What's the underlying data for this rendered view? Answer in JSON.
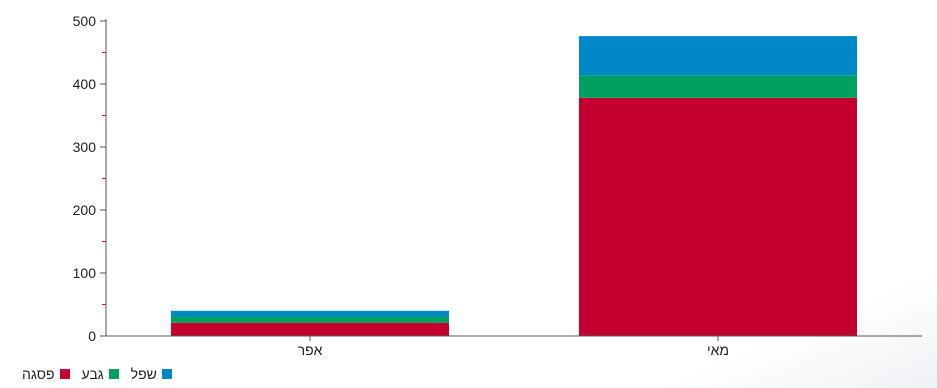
{
  "chart_data": {
    "type": "bar",
    "stacked": true,
    "categories": [
      "אפר",
      "מאי"
    ],
    "series": [
      {
        "name": "פסגה",
        "color": "#c4002f",
        "values": [
          21,
          378
        ]
      },
      {
        "name": "גבע",
        "color": "#00a060",
        "values": [
          10,
          36
        ]
      },
      {
        "name": "שפל",
        "color": "#0088c8",
        "values": [
          9,
          62
        ]
      }
    ],
    "yticks": [
      0,
      100,
      200,
      300,
      400,
      500
    ],
    "ylim": [
      0,
      500
    ],
    "legend_position": "bottom-left"
  }
}
